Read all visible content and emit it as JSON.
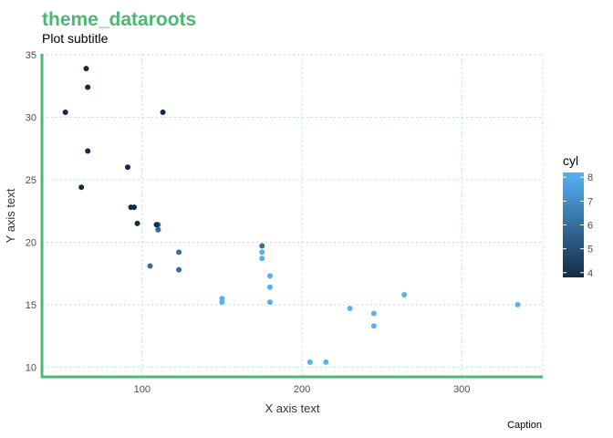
{
  "chart_data": {
    "type": "scatter",
    "title": "theme_dataroots",
    "subtitle": "Plot subtitle",
    "xlabel": "X axis text",
    "ylabel": "Y axis text",
    "caption": "Caption",
    "xlim": [
      37.35,
      350.65
    ],
    "ylim": [
      9.225,
      35.075
    ],
    "x_ticks": [
      100,
      200,
      300
    ],
    "y_ticks": [
      10,
      15,
      20,
      25,
      30,
      35
    ],
    "grid": true,
    "legend": {
      "title": "cyl",
      "position": "right",
      "type": "colorbar",
      "labels": [
        4,
        5,
        6,
        7,
        8
      ],
      "low_color": "#132B43",
      "high_color": "#56B1F7",
      "range": [
        4,
        8
      ]
    },
    "colors": {
      "title": "#4CB874",
      "axis_line": "#4CB874",
      "grid": "#b8e0e0"
    },
    "points": [
      {
        "x": 110,
        "y": 21.0,
        "cyl": 6
      },
      {
        "x": 110,
        "y": 21.0,
        "cyl": 6
      },
      {
        "x": 93,
        "y": 22.8,
        "cyl": 4
      },
      {
        "x": 110,
        "y": 21.4,
        "cyl": 6
      },
      {
        "x": 175,
        "y": 18.7,
        "cyl": 8
      },
      {
        "x": 105,
        "y": 18.1,
        "cyl": 6
      },
      {
        "x": 245,
        "y": 14.3,
        "cyl": 8
      },
      {
        "x": 62,
        "y": 24.4,
        "cyl": 4
      },
      {
        "x": 95,
        "y": 22.8,
        "cyl": 4
      },
      {
        "x": 123,
        "y": 19.2,
        "cyl": 6
      },
      {
        "x": 123,
        "y": 17.8,
        "cyl": 6
      },
      {
        "x": 180,
        "y": 16.4,
        "cyl": 8
      },
      {
        "x": 180,
        "y": 17.3,
        "cyl": 8
      },
      {
        "x": 180,
        "y": 15.2,
        "cyl": 8
      },
      {
        "x": 205,
        "y": 10.4,
        "cyl": 8
      },
      {
        "x": 215,
        "y": 10.4,
        "cyl": 8
      },
      {
        "x": 230,
        "y": 14.7,
        "cyl": 8
      },
      {
        "x": 66,
        "y": 32.4,
        "cyl": 4
      },
      {
        "x": 52,
        "y": 30.4,
        "cyl": 4
      },
      {
        "x": 65,
        "y": 33.9,
        "cyl": 4
      },
      {
        "x": 97,
        "y": 21.5,
        "cyl": 4
      },
      {
        "x": 150,
        "y": 15.5,
        "cyl": 8
      },
      {
        "x": 150,
        "y": 15.2,
        "cyl": 8
      },
      {
        "x": 245,
        "y": 13.3,
        "cyl": 8
      },
      {
        "x": 175,
        "y": 19.2,
        "cyl": 8
      },
      {
        "x": 66,
        "y": 27.3,
        "cyl": 4
      },
      {
        "x": 91,
        "y": 26.0,
        "cyl": 4
      },
      {
        "x": 113,
        "y": 30.4,
        "cyl": 4
      },
      {
        "x": 264,
        "y": 15.8,
        "cyl": 8
      },
      {
        "x": 175,
        "y": 19.7,
        "cyl": 6
      },
      {
        "x": 335,
        "y": 15.0,
        "cyl": 8
      },
      {
        "x": 109,
        "y": 21.4,
        "cyl": 4
      }
    ]
  }
}
